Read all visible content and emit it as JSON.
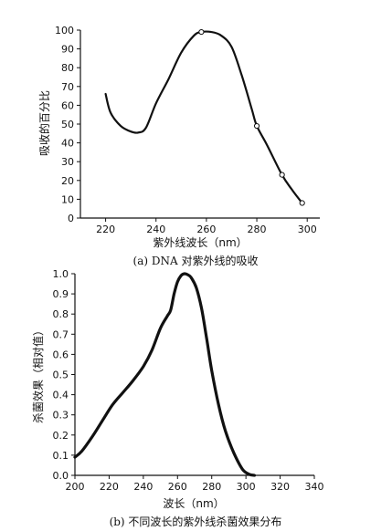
{
  "chart_data": [
    {
      "type": "line",
      "caption": "(a) DNA 对紫外线的吸收",
      "xlabel": "紫外线波长（nm）",
      "ylabel": "吸收的百分比",
      "xlim": [
        210,
        305
      ],
      "ylim": [
        0,
        100
      ],
      "x_ticks": [
        220,
        240,
        260,
        280,
        300
      ],
      "y_ticks": [
        0,
        10,
        20,
        30,
        40,
        50,
        60,
        70,
        80,
        90,
        100
      ],
      "grid": false,
      "series": [
        {
          "x": [
            220,
            222,
            226,
            230,
            233,
            236,
            240,
            245,
            250,
            255,
            258,
            262,
            266,
            270,
            274,
            278,
            280,
            284,
            290,
            294,
            298
          ],
          "y": [
            66,
            56,
            49,
            46,
            45.5,
            48,
            61,
            74,
            88,
            97,
            99,
            99,
            97,
            91,
            76,
            58,
            49,
            39,
            23,
            15,
            8
          ],
          "markers": [
            [
              258,
              99
            ],
            [
              280,
              49
            ],
            [
              290,
              23
            ],
            [
              298,
              8
            ]
          ]
        }
      ]
    },
    {
      "type": "line",
      "caption": "(b) 不同波长的紫外线杀菌效果分布",
      "xlabel": "波长（nm）",
      "ylabel": "杀菌效果（相对值）",
      "xlim": [
        200,
        340
      ],
      "ylim": [
        0,
        1.0
      ],
      "x_ticks": [
        200,
        220,
        240,
        260,
        280,
        300,
        320,
        340
      ],
      "y_ticks": [
        0,
        0.1,
        0.2,
        0.3,
        0.4,
        0.5,
        0.6,
        0.7,
        0.8,
        0.9,
        1.0
      ],
      "grid": false,
      "series": [
        {
          "x": [
            200,
            204,
            210,
            216,
            222,
            228,
            234,
            240,
            245,
            250,
            254,
            256,
            258,
            260,
            262,
            264,
            266,
            268,
            271,
            274,
            277,
            280,
            284,
            288,
            293,
            298,
            302,
            305
          ],
          "y": [
            0.09,
            0.12,
            0.19,
            0.27,
            0.35,
            0.41,
            0.47,
            0.54,
            0.62,
            0.73,
            0.79,
            0.82,
            0.9,
            0.96,
            0.99,
            1.0,
            0.995,
            0.98,
            0.93,
            0.83,
            0.68,
            0.52,
            0.35,
            0.22,
            0.11,
            0.03,
            0.005,
            0.0
          ]
        }
      ]
    }
  ]
}
